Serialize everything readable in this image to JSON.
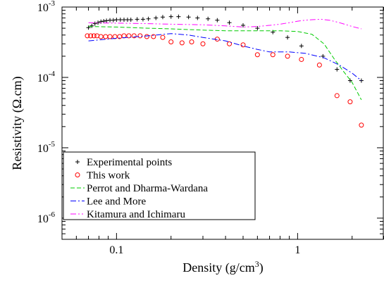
{
  "chart_data": {
    "type": "scatter",
    "title": "",
    "xlabel": "Density (g/cm",
    "xlabel_sup": "3",
    "xlabel_end": ")",
    "ylabel": "Resistivity (Ω.cm)",
    "xscale": "log",
    "yscale": "log",
    "xlim": [
      0.05,
      3.0
    ],
    "ylim": [
      5e-07,
      0.001
    ],
    "x_ticks": [
      {
        "value": 0.1,
        "label": "0.1"
      },
      {
        "value": 1,
        "label": "1"
      }
    ],
    "y_ticks": [
      {
        "value": 1e-06,
        "base": "10",
        "exp": "-6"
      },
      {
        "value": 1e-05,
        "base": "10",
        "exp": "-5"
      },
      {
        "value": 0.0001,
        "base": "10",
        "exp": "-4"
      },
      {
        "value": 0.001,
        "base": "10",
        "exp": "-3"
      }
    ],
    "grid": false,
    "legend_position": "bottom-left",
    "series": [
      {
        "name": "Experimental points",
        "marker": "plus",
        "color": "#000000",
        "x": [
          0.07,
          0.073,
          0.076,
          0.079,
          0.082,
          0.085,
          0.088,
          0.092,
          0.096,
          0.1,
          0.105,
          0.11,
          0.115,
          0.12,
          0.13,
          0.14,
          0.15,
          0.165,
          0.18,
          0.2,
          0.22,
          0.25,
          0.28,
          0.32,
          0.36,
          0.42,
          0.5,
          0.6,
          0.73,
          0.88,
          1.05,
          1.38,
          1.65,
          1.95,
          2.25
        ],
        "y": [
          0.00051,
          0.00054,
          0.00058,
          0.0006,
          0.00062,
          0.00063,
          0.00064,
          0.00065,
          0.00065,
          0.00066,
          0.00066,
          0.00066,
          0.00066,
          0.00066,
          0.00067,
          0.00067,
          0.00068,
          0.0007,
          0.00072,
          0.00073,
          0.00073,
          0.00072,
          0.0007,
          0.00068,
          0.00065,
          0.0006,
          0.00055,
          0.0005,
          0.00044,
          0.00037,
          0.00028,
          0.0002,
          0.00013,
          9e-05,
          9e-05
        ]
      },
      {
        "name": "This work",
        "marker": "circle",
        "color": "#ff0000",
        "x": [
          0.069,
          0.072,
          0.075,
          0.078,
          0.082,
          0.087,
          0.092,
          0.098,
          0.104,
          0.11,
          0.117,
          0.125,
          0.135,
          0.147,
          0.16,
          0.18,
          0.2,
          0.23,
          0.26,
          0.3,
          0.36,
          0.42,
          0.5,
          0.6,
          0.73,
          0.88,
          1.05,
          1.32,
          1.65,
          1.95,
          2.25
        ],
        "y": [
          0.00039,
          0.00039,
          0.00039,
          0.00039,
          0.00038,
          0.00038,
          0.00038,
          0.00038,
          0.00038,
          0.00039,
          0.00039,
          0.00039,
          0.00039,
          0.00038,
          0.00038,
          0.00037,
          0.00032,
          0.00031,
          0.00032,
          0.0003,
          0.00035,
          0.0003,
          0.00029,
          0.00021,
          0.00021,
          0.0002,
          0.00018,
          0.00015,
          5.5e-05,
          4.5e-05,
          2.1e-05
        ]
      },
      {
        "name": "Perrot and Dharma-Wardana",
        "marker": "line",
        "dash": "6,3",
        "color": "#00cc00",
        "x": [
          0.07,
          0.1,
          0.15,
          0.2,
          0.3,
          0.4,
          0.5,
          0.6,
          0.8,
          1.0,
          1.2,
          1.4,
          1.6,
          1.8,
          2.0,
          2.25
        ],
        "y": [
          0.00053,
          0.00052,
          0.0005,
          0.00049,
          0.00047,
          0.00046,
          0.00046,
          0.00046,
          0.00046,
          0.00045,
          0.00041,
          0.0003,
          0.00018,
          0.00012,
          8.5e-05,
          4.8e-05
        ]
      },
      {
        "name": "Lee and More",
        "marker": "line",
        "dash": "8,3,2,3",
        "color": "#0000ff",
        "x": [
          0.07,
          0.1,
          0.15,
          0.2,
          0.25,
          0.3,
          0.4,
          0.5,
          0.6,
          0.7,
          0.9,
          1.1,
          1.4,
          1.7,
          2.0,
          2.25
        ],
        "y": [
          0.00033,
          0.00036,
          0.00039,
          0.00042,
          0.0004,
          0.00037,
          0.00033,
          0.00028,
          0.00025,
          0.00023,
          0.00023,
          0.00022,
          0.00019,
          0.00015,
          0.000115,
          9e-05
        ]
      },
      {
        "name": "Kitamura and Ichimaru",
        "marker": "line",
        "dash": "8,3,2,3,2,3",
        "color": "#ff00ff",
        "x": [
          0.07,
          0.1,
          0.15,
          0.2,
          0.3,
          0.4,
          0.5,
          0.6,
          0.7,
          0.8,
          0.9,
          1.0,
          1.1,
          1.2,
          1.35,
          1.5,
          1.7,
          2.0,
          2.25
        ],
        "y": [
          0.0006,
          0.00059,
          0.00058,
          0.00057,
          0.00056,
          0.00054,
          0.00052,
          0.00053,
          0.00055,
          0.00057,
          0.0006,
          0.00063,
          0.00065,
          0.00066,
          0.00067,
          0.00065,
          0.0006,
          0.00053,
          0.00049
        ]
      }
    ]
  }
}
